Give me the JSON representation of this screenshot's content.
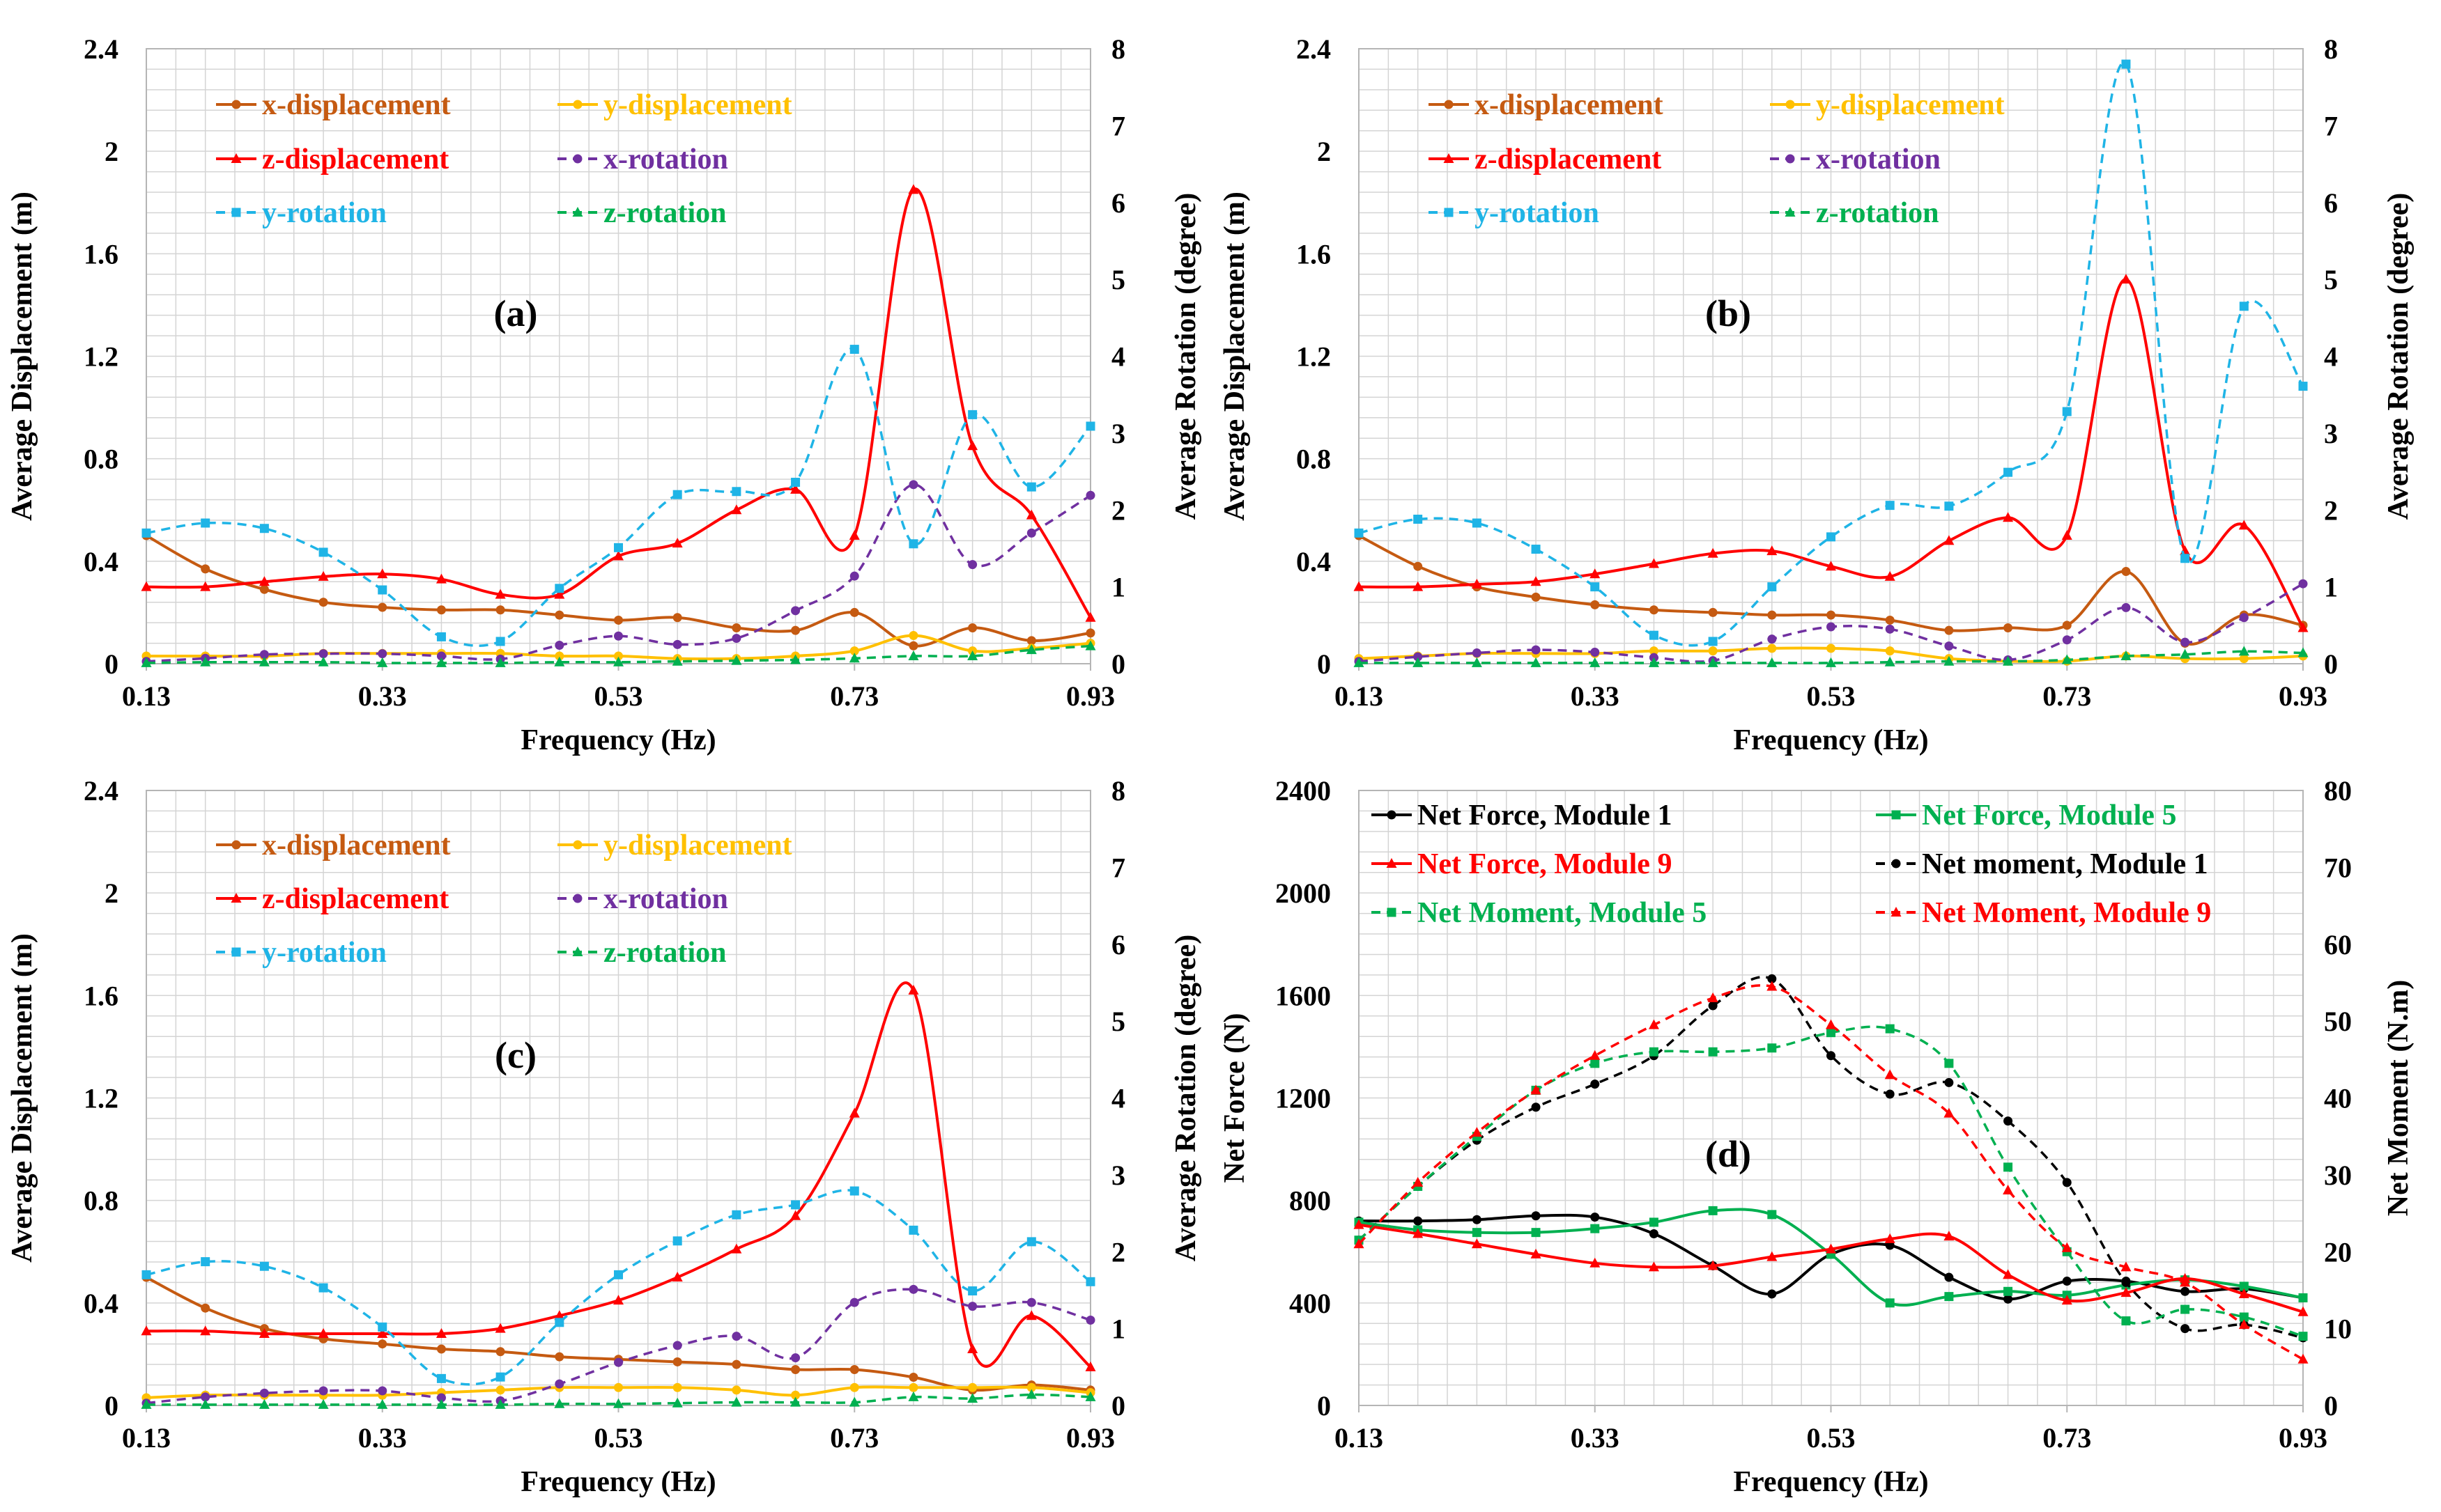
{
  "colors": {
    "x_disp": "#c55a11",
    "y_disp": "#ffc000",
    "z_disp": "#ff0000",
    "x_rot": "#7030a0",
    "y_rot": "#1fb4e6",
    "z_rot": "#00b050",
    "black": "#000000",
    "green": "#00b050",
    "red": "#ff0000"
  },
  "chart_data": [
    {
      "id": "a",
      "type": "line",
      "panel_label": "(a)",
      "xlabel": "Frequency (Hz)",
      "ylabel": "Average Displacement (m)",
      "y2label": "Average Rotation (degree)",
      "xlim": [
        0.13,
        0.93
      ],
      "ylim": [
        0,
        2.4
      ],
      "y2lim": [
        0,
        8
      ],
      "x_ticks": [
        "0.13",
        "0.33",
        "0.53",
        "0.73",
        "0.93"
      ],
      "y_ticks": [
        "0",
        "0.4",
        "0.8",
        "1.2",
        "1.6",
        "2",
        "2.4"
      ],
      "y2_ticks": [
        "0",
        "1",
        "2",
        "3",
        "4",
        "5",
        "6",
        "7",
        "8"
      ],
      "x": [
        0.13,
        0.18,
        0.23,
        0.28,
        0.33,
        0.38,
        0.43,
        0.48,
        0.53,
        0.58,
        0.63,
        0.68,
        0.73,
        0.78,
        0.83,
        0.88,
        0.93
      ],
      "series": [
        {
          "name": "x-displacement",
          "axis": "left",
          "color_key": "x_disp",
          "dashed": false,
          "marker": "circle",
          "values": [
            0.5,
            0.37,
            0.29,
            0.24,
            0.22,
            0.21,
            0.21,
            0.19,
            0.17,
            0.18,
            0.14,
            0.13,
            0.2,
            0.07,
            0.14,
            0.09,
            0.12
          ]
        },
        {
          "name": "y-displacement",
          "axis": "left",
          "color_key": "y_disp",
          "dashed": false,
          "marker": "circle",
          "values": [
            0.03,
            0.03,
            0.03,
            0.04,
            0.04,
            0.04,
            0.04,
            0.03,
            0.03,
            0.02,
            0.02,
            0.03,
            0.05,
            0.11,
            0.05,
            0.06,
            0.08
          ]
        },
        {
          "name": "z-displacement",
          "axis": "left",
          "color_key": "z_disp",
          "dashed": false,
          "marker": "triangle",
          "values": [
            0.3,
            0.3,
            0.32,
            0.34,
            0.35,
            0.33,
            0.27,
            0.27,
            0.42,
            0.47,
            0.6,
            0.68,
            0.5,
            1.85,
            0.85,
            0.58,
            0.18
          ]
        },
        {
          "name": "x-rotation",
          "axis": "right",
          "color_key": "x_rot",
          "dashed": true,
          "marker": "circle",
          "values": [
            0.03,
            0.07,
            0.12,
            0.13,
            0.13,
            0.1,
            0.06,
            0.24,
            0.36,
            0.25,
            0.33,
            0.69,
            1.14,
            2.33,
            1.29,
            1.7,
            2.19
          ]
        },
        {
          "name": "y-rotation",
          "axis": "right",
          "color_key": "y_rot",
          "dashed": true,
          "marker": "square",
          "values": [
            1.7,
            1.83,
            1.76,
            1.45,
            0.96,
            0.35,
            0.29,
            0.98,
            1.51,
            2.2,
            2.24,
            2.36,
            4.09,
            1.56,
            3.24,
            2.3,
            3.09
          ]
        },
        {
          "name": "z-rotation",
          "axis": "right",
          "color_key": "z_rot",
          "dashed": true,
          "marker": "triangle",
          "values": [
            0.01,
            0.02,
            0.02,
            0.02,
            0.01,
            0.01,
            0.01,
            0.02,
            0.02,
            0.03,
            0.04,
            0.05,
            0.07,
            0.1,
            0.1,
            0.18,
            0.23
          ]
        }
      ]
    },
    {
      "id": "b",
      "type": "line",
      "panel_label": "(b)",
      "xlabel": "Frequency (Hz)",
      "ylabel": "Average Displacement (m)",
      "y2label": "Average Rotation (degree)",
      "xlim": [
        0.13,
        0.93
      ],
      "ylim": [
        0,
        2.4
      ],
      "y2lim": [
        0,
        8
      ],
      "x_ticks": [
        "0.13",
        "0.33",
        "0.53",
        "0.73",
        "0.93"
      ],
      "y_ticks": [
        "0",
        "0.4",
        "0.8",
        "1.2",
        "1.6",
        "2",
        "2.4"
      ],
      "y2_ticks": [
        "0",
        "1",
        "2",
        "3",
        "4",
        "5",
        "6",
        "7",
        "8"
      ],
      "x": [
        0.13,
        0.18,
        0.23,
        0.28,
        0.33,
        0.38,
        0.43,
        0.48,
        0.53,
        0.58,
        0.63,
        0.68,
        0.73,
        0.78,
        0.83,
        0.88,
        0.93
      ],
      "series": [
        {
          "name": "x-displacement",
          "axis": "left",
          "color_key": "x_disp",
          "dashed": false,
          "marker": "circle",
          "values": [
            0.5,
            0.38,
            0.3,
            0.26,
            0.23,
            0.21,
            0.2,
            0.19,
            0.19,
            0.17,
            0.13,
            0.14,
            0.15,
            0.36,
            0.08,
            0.19,
            0.15
          ]
        },
        {
          "name": "y-displacement",
          "axis": "left",
          "color_key": "y_disp",
          "dashed": false,
          "marker": "circle",
          "values": [
            0.02,
            0.03,
            0.04,
            0.04,
            0.04,
            0.05,
            0.05,
            0.06,
            0.06,
            0.05,
            0.02,
            0.01,
            0.01,
            0.03,
            0.02,
            0.02,
            0.03
          ]
        },
        {
          "name": "z-displacement",
          "axis": "left",
          "color_key": "z_disp",
          "dashed": false,
          "marker": "triangle",
          "values": [
            0.3,
            0.3,
            0.31,
            0.32,
            0.35,
            0.39,
            0.43,
            0.44,
            0.38,
            0.34,
            0.48,
            0.57,
            0.5,
            1.5,
            0.44,
            0.54,
            0.14
          ]
        },
        {
          "name": "x-rotation",
          "axis": "right",
          "color_key": "x_rot",
          "dashed": true,
          "marker": "circle",
          "values": [
            0.03,
            0.09,
            0.14,
            0.18,
            0.15,
            0.08,
            0.04,
            0.32,
            0.48,
            0.45,
            0.23,
            0.05,
            0.31,
            0.73,
            0.28,
            0.6,
            1.04
          ]
        },
        {
          "name": "y-rotation",
          "axis": "right",
          "color_key": "y_rot",
          "dashed": true,
          "marker": "square",
          "values": [
            1.7,
            1.88,
            1.83,
            1.49,
            1.0,
            0.37,
            0.29,
            1.0,
            1.65,
            2.06,
            2.05,
            2.49,
            3.28,
            7.8,
            1.37,
            4.65,
            3.61
          ]
        },
        {
          "name": "z-rotation",
          "axis": "right",
          "color_key": "z_rot",
          "dashed": true,
          "marker": "triangle",
          "values": [
            0.01,
            0.01,
            0.01,
            0.01,
            0.01,
            0.01,
            0.01,
            0.01,
            0.01,
            0.02,
            0.03,
            0.03,
            0.05,
            0.1,
            0.12,
            0.16,
            0.14
          ]
        }
      ]
    },
    {
      "id": "c",
      "type": "line",
      "panel_label": "(c)",
      "xlabel": "Frequency (Hz)",
      "ylabel": "Average Displacement (m)",
      "y2label": "Average Rotation (degree)",
      "xlim": [
        0.13,
        0.93
      ],
      "ylim": [
        0,
        2.4
      ],
      "y2lim": [
        0,
        8
      ],
      "x_ticks": [
        "0.13",
        "0.33",
        "0.53",
        "0.73",
        "0.93"
      ],
      "y_ticks": [
        "0",
        "0.4",
        "0.8",
        "1.2",
        "1.6",
        "2",
        "2.4"
      ],
      "y2_ticks": [
        "0",
        "1",
        "2",
        "3",
        "4",
        "5",
        "6",
        "7",
        "8"
      ],
      "x": [
        0.13,
        0.18,
        0.23,
        0.28,
        0.33,
        0.38,
        0.43,
        0.48,
        0.53,
        0.58,
        0.63,
        0.68,
        0.73,
        0.78,
        0.83,
        0.88,
        0.93
      ],
      "series": [
        {
          "name": "x-displacement",
          "axis": "left",
          "color_key": "x_disp",
          "dashed": false,
          "marker": "circle",
          "values": [
            0.5,
            0.38,
            0.3,
            0.26,
            0.24,
            0.22,
            0.21,
            0.19,
            0.18,
            0.17,
            0.16,
            0.14,
            0.14,
            0.11,
            0.06,
            0.08,
            0.06
          ]
        },
        {
          "name": "y-displacement",
          "axis": "left",
          "color_key": "y_disp",
          "dashed": false,
          "marker": "circle",
          "values": [
            0.03,
            0.04,
            0.04,
            0.04,
            0.04,
            0.05,
            0.06,
            0.07,
            0.07,
            0.07,
            0.06,
            0.04,
            0.07,
            0.07,
            0.07,
            0.07,
            0.05
          ]
        },
        {
          "name": "z-displacement",
          "axis": "left",
          "color_key": "z_disp",
          "dashed": false,
          "marker": "triangle",
          "values": [
            0.29,
            0.29,
            0.28,
            0.28,
            0.28,
            0.28,
            0.3,
            0.35,
            0.41,
            0.5,
            0.61,
            0.74,
            1.14,
            1.62,
            0.22,
            0.35,
            0.15
          ]
        },
        {
          "name": "x-rotation",
          "axis": "right",
          "color_key": "x_rot",
          "dashed": true,
          "marker": "circle",
          "values": [
            0.03,
            0.11,
            0.16,
            0.19,
            0.19,
            0.1,
            0.06,
            0.28,
            0.56,
            0.78,
            0.9,
            0.62,
            1.34,
            1.51,
            1.29,
            1.34,
            1.11
          ]
        },
        {
          "name": "y-rotation",
          "axis": "right",
          "color_key": "y_rot",
          "dashed": true,
          "marker": "square",
          "values": [
            1.7,
            1.87,
            1.81,
            1.53,
            1.02,
            0.35,
            0.37,
            1.08,
            1.7,
            2.14,
            2.48,
            2.61,
            2.79,
            2.28,
            1.49,
            2.13,
            1.61
          ]
        },
        {
          "name": "z-rotation",
          "axis": "right",
          "color_key": "z_rot",
          "dashed": true,
          "marker": "triangle",
          "values": [
            0.01,
            0.01,
            0.01,
            0.01,
            0.01,
            0.01,
            0.01,
            0.02,
            0.02,
            0.03,
            0.04,
            0.04,
            0.04,
            0.11,
            0.09,
            0.14,
            0.11
          ]
        }
      ]
    },
    {
      "id": "d",
      "type": "line",
      "panel_label": "(d)",
      "xlabel": "Frequency (Hz)",
      "ylabel": "Net Force (N)",
      "y2label": "Net Moment (N.m)",
      "xlim": [
        0.13,
        0.93
      ],
      "ylim": [
        0,
        2400
      ],
      "y2lim": [
        0,
        80
      ],
      "x_ticks": [
        "0.13",
        "0.33",
        "0.53",
        "0.73",
        "0.93"
      ],
      "y_ticks": [
        "0",
        "400",
        "800",
        "1200",
        "1600",
        "2000",
        "2400"
      ],
      "y2_ticks": [
        "0",
        "10",
        "20",
        "30",
        "40",
        "50",
        "60",
        "70",
        "80"
      ],
      "x": [
        0.13,
        0.18,
        0.23,
        0.28,
        0.33,
        0.38,
        0.43,
        0.48,
        0.53,
        0.58,
        0.63,
        0.68,
        0.73,
        0.78,
        0.83,
        0.88,
        0.93
      ],
      "series": [
        {
          "name": "Net Force, Module 1",
          "axis": "left",
          "color_key": "black",
          "dashed": false,
          "marker": "circle",
          "values": [
            720,
            720,
            725,
            740,
            735,
            670,
            545,
            435,
            590,
            625,
            500,
            415,
            485,
            485,
            445,
            455,
            420
          ]
        },
        {
          "name": "Net Force, Module 5",
          "axis": "left",
          "color_key": "green",
          "dashed": false,
          "marker": "square",
          "values": [
            715,
            685,
            675,
            675,
            690,
            715,
            760,
            745,
            590,
            400,
            425,
            445,
            430,
            470,
            490,
            465,
            420
          ]
        },
        {
          "name": "Net Force, Module 9",
          "axis": "left",
          "color_key": "red",
          "dashed": false,
          "marker": "triangle",
          "values": [
            705,
            670,
            630,
            590,
            555,
            540,
            545,
            580,
            610,
            650,
            660,
            510,
            410,
            440,
            495,
            435,
            365
          ]
        },
        {
          "name": "Net moment, Module 1",
          "axis": "right",
          "color_key": "black",
          "dashed": true,
          "marker": "circle",
          "values": [
            21.5,
            28.5,
            34.5,
            38.8,
            41.8,
            45.5,
            52.0,
            55.5,
            45.5,
            40.5,
            42.0,
            37.0,
            29.0,
            16.0,
            10.0,
            10.5,
            8.8
          ]
        },
        {
          "name": "Net Moment, Module 5",
          "axis": "right",
          "color_key": "green",
          "dashed": true,
          "marker": "square",
          "values": [
            21.5,
            28.5,
            35.0,
            41.0,
            44.5,
            46.0,
            46.0,
            46.5,
            48.5,
            49.0,
            44.5,
            31.0,
            20.0,
            11.0,
            12.5,
            11.5,
            9.0
          ]
        },
        {
          "name": "Net Moment, Module 9",
          "axis": "right",
          "color_key": "red",
          "dashed": true,
          "marker": "triangle",
          "values": [
            21.0,
            29.0,
            35.5,
            41.0,
            45.5,
            49.5,
            53.0,
            54.5,
            49.5,
            43.0,
            38.0,
            28.0,
            20.5,
            18.0,
            16.0,
            10.5,
            6.0
          ]
        }
      ]
    }
  ]
}
